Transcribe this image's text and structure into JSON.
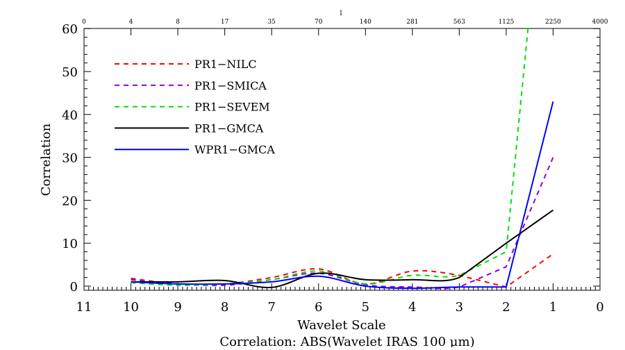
{
  "chart_data": {
    "type": "line",
    "title": "Correlation: ABS(Wavelet  IRAS 100 μm)",
    "xlabel": "Wavelet Scale",
    "ylabel": "Correlation",
    "top_axis_label": "l",
    "xlim": [
      11,
      0
    ],
    "ylim": [
      -1,
      61
    ],
    "x_ticks": [
      "11",
      "10",
      "9",
      "8",
      "7",
      "6",
      "5",
      "4",
      "3",
      "2",
      "1",
      "0"
    ],
    "y_ticks": [
      "0",
      "10",
      "20",
      "30",
      "40",
      "50",
      "60"
    ],
    "top_ticks": [
      "0",
      "4",
      "8",
      "17",
      "35",
      "70",
      "140",
      "281",
      "563",
      "1125",
      "2250",
      "4000"
    ],
    "legend_position": "top-left",
    "x": [
      10,
      9,
      8,
      7,
      6,
      5,
      4,
      3,
      2,
      1
    ],
    "series": [
      {
        "name": "PR1−NILC",
        "color": "#ff0000",
        "dash": true,
        "values": [
          1.8,
          0.5,
          0.5,
          2.0,
          4.0,
          0.5,
          3.5,
          2.5,
          -0.2,
          7.5
        ]
      },
      {
        "name": "PR1−SMICA",
        "color": "#8a00e0",
        "dash": true,
        "values": [
          1.5,
          0.5,
          0.2,
          1.5,
          3.0,
          0.3,
          -0.2,
          -0.2,
          4.5,
          30.0
        ]
      },
      {
        "name": "PR1−SEVEM",
        "color": "#00e000",
        "dash": true,
        "values": [
          0.8,
          0.2,
          0.5,
          1.5,
          3.5,
          0.5,
          2.5,
          2.5,
          8.0,
          120.0
        ]
      },
      {
        "name": "PR1−GMCA",
        "color": "#000000",
        "dash": false,
        "values": [
          1.0,
          1.0,
          1.3,
          -0.3,
          3.0,
          1.5,
          1.5,
          2.0,
          10.0,
          17.7
        ]
      },
      {
        "name": "WPR1−GMCA",
        "color": "#0000ff",
        "dash": false,
        "values": [
          1.0,
          0.5,
          0.5,
          1.0,
          2.3,
          0.0,
          -0.5,
          -0.2,
          -0.2,
          43.0
        ]
      }
    ]
  }
}
